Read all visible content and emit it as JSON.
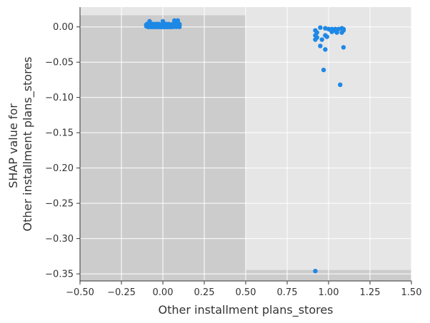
{
  "chart_data": {
    "type": "scatter",
    "xlabel": "Other installment plans_stores",
    "ylabel_lines": [
      "SHAP value for",
      "Other installment plans_stores"
    ],
    "xlim": [
      -0.5,
      1.5
    ],
    "ylim": [
      -0.36,
      0.028
    ],
    "xticks": [
      -0.5,
      -0.25,
      0.0,
      0.25,
      0.5,
      0.75,
      1.0,
      1.25,
      1.5
    ],
    "xtick_labels": [
      "−0.50",
      "−0.25",
      "0.00",
      "0.25",
      "0.50",
      "0.75",
      "1.00",
      "1.25",
      "1.50"
    ],
    "yticks": [
      0.0,
      -0.05,
      -0.1,
      -0.15,
      -0.2,
      -0.25,
      -0.3,
      -0.35
    ],
    "ytick_labels": [
      "0.00",
      "−0.05",
      "−0.10",
      "−0.15",
      "−0.20",
      "−0.25",
      "−0.30",
      "−0.35"
    ],
    "grid": true,
    "colors": {
      "point": "#1e88e5",
      "plot_background": "#e6e6e6",
      "histogram_bar": "#cccccc",
      "grid": "#ffffff",
      "axis": "#333333"
    },
    "histogram": [
      {
        "x_range": [
          -0.5,
          0.5
        ],
        "relative_height": 0.97
      },
      {
        "x_range": [
          0.5,
          1.5
        ],
        "relative_height": 0.04
      }
    ],
    "points": [
      {
        "x": -0.09,
        "y": 0.0
      },
      {
        "x": -0.08,
        "y": 0.003
      },
      {
        "x": -0.08,
        "y": 0.008
      },
      {
        "x": -0.07,
        "y": 0.0
      },
      {
        "x": -0.06,
        "y": 0.002
      },
      {
        "x": -0.05,
        "y": 0.0
      },
      {
        "x": -0.04,
        "y": 0.004
      },
      {
        "x": -0.03,
        "y": 0.0
      },
      {
        "x": -0.02,
        "y": 0.002
      },
      {
        "x": -0.01,
        "y": 0.0
      },
      {
        "x": 0.0,
        "y": 0.003
      },
      {
        "x": 0.01,
        "y": 0.0
      },
      {
        "x": 0.02,
        "y": 0.004
      },
      {
        "x": 0.03,
        "y": 0.0
      },
      {
        "x": 0.04,
        "y": 0.002
      },
      {
        "x": 0.05,
        "y": 0.0
      },
      {
        "x": 0.06,
        "y": 0.004
      },
      {
        "x": 0.07,
        "y": 0.009
      },
      {
        "x": 0.08,
        "y": 0.0
      },
      {
        "x": 0.09,
        "y": 0.002
      },
      {
        "x": 0.1,
        "y": 0.0
      },
      {
        "x": -0.045,
        "y": 0.001
      },
      {
        "x": 0.035,
        "y": 0.004
      },
      {
        "x": 0.055,
        "y": 0.001
      },
      {
        "x": -0.065,
        "y": 0.004
      },
      {
        "x": 0.075,
        "y": 0.004
      },
      {
        "x": 0.095,
        "y": 0.004
      },
      {
        "x": -0.1,
        "y": 0.001
      },
      {
        "x": 0.085,
        "y": 0.008
      },
      {
        "x": -0.015,
        "y": 0.0
      },
      {
        "x": -0.025,
        "y": 0.004
      },
      {
        "x": -0.055,
        "y": 0.004
      },
      {
        "x": -0.095,
        "y": 0.004
      },
      {
        "x": -0.075,
        "y": 0.002
      },
      {
        "x": -0.035,
        "y": 0.002
      },
      {
        "x": 0.015,
        "y": 0.002
      },
      {
        "x": 0.025,
        "y": 0.0
      },
      {
        "x": 0.045,
        "y": 0.0
      },
      {
        "x": 0.065,
        "y": 0.002
      },
      {
        "x": 0.005,
        "y": 0.0
      },
      {
        "x": -0.005,
        "y": 0.002
      },
      {
        "x": 0.07,
        "y": 0.002
      },
      {
        "x": -0.05,
        "y": 0.003
      },
      {
        "x": 0.02,
        "y": 0.0
      },
      {
        "x": 0.05,
        "y": 0.003
      },
      {
        "x": 0.09,
        "y": 0.009
      },
      {
        "x": -0.02,
        "y": 0.0
      },
      {
        "x": 0.0,
        "y": 0.0
      },
      {
        "x": 0.1,
        "y": 0.002
      },
      {
        "x": -0.1,
        "y": 0.003
      },
      {
        "x": 0.04,
        "y": 0.0
      },
      {
        "x": -0.04,
        "y": 0.0
      },
      {
        "x": 0.08,
        "y": 0.004
      },
      {
        "x": 0.06,
        "y": 0.0
      },
      {
        "x": 0.03,
        "y": 0.003
      },
      {
        "x": -0.06,
        "y": 0.0
      },
      {
        "x": -0.03,
        "y": 0.004
      },
      {
        "x": 0.01,
        "y": 0.004
      },
      {
        "x": -0.07,
        "y": 0.003
      },
      {
        "x": -0.01,
        "y": 0.003
      },
      {
        "x": -0.08,
        "y": 0.0
      },
      {
        "x": -0.09,
        "y": 0.003
      },
      {
        "x": 0.1,
        "y": 0.004
      },
      {
        "x": 0.0,
        "y": 0.008
      },
      {
        "x": 0.92,
        "y": -0.005
      },
      {
        "x": 0.93,
        "y": -0.008
      },
      {
        "x": 0.92,
        "y": -0.012
      },
      {
        "x": 0.93,
        "y": -0.015
      },
      {
        "x": 0.92,
        "y": -0.018
      },
      {
        "x": 0.95,
        "y": -0.001
      },
      {
        "x": 0.96,
        "y": -0.018
      },
      {
        "x": 0.95,
        "y": -0.027
      },
      {
        "x": 0.98,
        "y": -0.002
      },
      {
        "x": 0.98,
        "y": -0.012
      },
      {
        "x": 0.99,
        "y": -0.014
      },
      {
        "x": 1.0,
        "y": -0.003
      },
      {
        "x": 1.01,
        "y": -0.004
      },
      {
        "x": 1.02,
        "y": -0.007
      },
      {
        "x": 1.02,
        "y": -0.003
      },
      {
        "x": 1.03,
        "y": -0.005
      },
      {
        "x": 1.04,
        "y": -0.004
      },
      {
        "x": 1.04,
        "y": -0.003
      },
      {
        "x": 1.05,
        "y": -0.008
      },
      {
        "x": 1.06,
        "y": -0.003
      },
      {
        "x": 1.08,
        "y": -0.008
      },
      {
        "x": 1.08,
        "y": -0.002
      },
      {
        "x": 1.09,
        "y": -0.005
      },
      {
        "x": 1.09,
        "y": -0.003
      },
      {
        "x": 0.98,
        "y": -0.032
      },
      {
        "x": 1.09,
        "y": -0.029
      },
      {
        "x": 0.97,
        "y": -0.061
      },
      {
        "x": 1.07,
        "y": -0.082
      },
      {
        "x": 0.92,
        "y": -0.346
      }
    ]
  }
}
